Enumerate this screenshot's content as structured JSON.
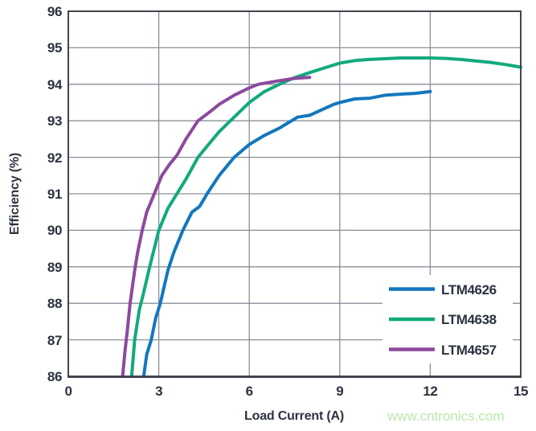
{
  "chart_data": {
    "type": "line",
    "title": "",
    "xlabel": "Load Current (A)",
    "ylabel": "Efficiency (%)",
    "xlim": [
      0,
      15
    ],
    "ylim": [
      86,
      96
    ],
    "x_ticks": [
      0,
      3,
      6,
      9,
      12,
      15
    ],
    "y_ticks": [
      96,
      95,
      94,
      93,
      92,
      91,
      90,
      89,
      88,
      87,
      86
    ],
    "grid": true,
    "legend_position": "inside-bottom-right",
    "series": [
      {
        "name": "LTM4626",
        "color": "#1377bd",
        "points": [
          [
            2.5,
            86.0
          ],
          [
            2.6,
            86.6
          ],
          [
            2.75,
            87.0
          ],
          [
            2.9,
            87.6
          ],
          [
            3.05,
            88.0
          ],
          [
            3.3,
            88.9
          ],
          [
            3.5,
            89.4
          ],
          [
            3.8,
            90.0
          ],
          [
            4.1,
            90.5
          ],
          [
            4.35,
            90.65
          ],
          [
            4.6,
            91.0
          ],
          [
            5.0,
            91.5
          ],
          [
            5.5,
            92.0
          ],
          [
            6.0,
            92.35
          ],
          [
            6.5,
            92.6
          ],
          [
            7.0,
            92.8
          ],
          [
            7.3,
            92.95
          ],
          [
            7.6,
            93.1
          ],
          [
            8.0,
            93.15
          ],
          [
            8.4,
            93.3
          ],
          [
            8.8,
            93.45
          ],
          [
            9.0,
            93.5
          ],
          [
            9.5,
            93.6
          ],
          [
            10.0,
            93.62
          ],
          [
            10.5,
            93.7
          ],
          [
            11.0,
            93.73
          ],
          [
            11.5,
            93.75
          ],
          [
            12.0,
            93.8
          ]
        ]
      },
      {
        "name": "LTM4638",
        "color": "#13a97d",
        "points": [
          [
            2.1,
            86.0
          ],
          [
            2.2,
            87.0
          ],
          [
            2.35,
            87.8
          ],
          [
            2.5,
            88.3
          ],
          [
            2.7,
            89.0
          ],
          [
            3.0,
            90.0
          ],
          [
            3.3,
            90.6
          ],
          [
            3.6,
            91.0
          ],
          [
            3.9,
            91.4
          ],
          [
            4.3,
            92.0
          ],
          [
            4.7,
            92.4
          ],
          [
            5.0,
            92.7
          ],
          [
            5.5,
            93.1
          ],
          [
            6.0,
            93.5
          ],
          [
            6.5,
            93.8
          ],
          [
            7.0,
            94.0
          ],
          [
            7.5,
            94.18
          ],
          [
            8.0,
            94.32
          ],
          [
            8.5,
            94.45
          ],
          [
            9.0,
            94.58
          ],
          [
            9.5,
            94.65
          ],
          [
            10.0,
            94.68
          ],
          [
            10.5,
            94.7
          ],
          [
            11.0,
            94.72
          ],
          [
            12.0,
            94.72
          ],
          [
            12.5,
            94.71
          ],
          [
            13.0,
            94.68
          ],
          [
            13.5,
            94.64
          ],
          [
            14.0,
            94.6
          ],
          [
            14.5,
            94.54
          ],
          [
            15.0,
            94.47
          ]
        ]
      },
      {
        "name": "LTM4657",
        "color": "#8c4a9d",
        "points": [
          [
            1.8,
            86.0
          ],
          [
            1.88,
            86.7
          ],
          [
            1.95,
            87.2
          ],
          [
            2.05,
            88.0
          ],
          [
            2.2,
            88.9
          ],
          [
            2.3,
            89.4
          ],
          [
            2.45,
            90.0
          ],
          [
            2.6,
            90.5
          ],
          [
            2.85,
            91.0
          ],
          [
            3.1,
            91.5
          ],
          [
            3.35,
            91.8
          ],
          [
            3.6,
            92.05
          ],
          [
            3.9,
            92.5
          ],
          [
            4.3,
            93.0
          ],
          [
            4.7,
            93.25
          ],
          [
            5.0,
            93.45
          ],
          [
            5.5,
            93.7
          ],
          [
            6.0,
            93.9
          ],
          [
            6.3,
            94.0
          ],
          [
            7.0,
            94.1
          ],
          [
            7.5,
            94.16
          ],
          [
            8.0,
            94.19
          ]
        ]
      }
    ]
  },
  "watermark": {
    "text": "www.cntronics.com",
    "color": "#b9e7ab"
  },
  "colors": {
    "text": "#2b3240",
    "grid": "#8a8f99",
    "frame": "#41454f",
    "background": "#ffffff"
  }
}
